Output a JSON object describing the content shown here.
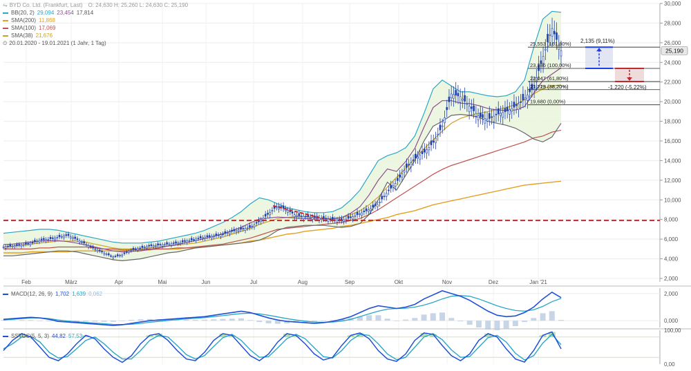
{
  "header": {
    "instrument": "BYD Co. Ltd. (Frankfurt, Last)",
    "ohlc": "O: 24,630   H: 25,260   L: 24,630   C: 25,190",
    "period": "20.01.2020 - 19.01.2021  (1 Jahr, 1 Tag)"
  },
  "indicators": [
    {
      "label": "BB(20, 2)",
      "color": "#2aa6c8",
      "values": [
        "29,094",
        "23,454",
        "17,814"
      ],
      "value_colors": [
        "#2aa6c8",
        "#8b4f8f",
        "#555555"
      ]
    },
    {
      "label": "SMA(200)",
      "color": "#e3a020",
      "values": [
        "11,868"
      ],
      "value_colors": [
        "#e3a020"
      ]
    },
    {
      "label": "SMA(100)",
      "color": "#c0504d",
      "values": [
        "17,069"
      ],
      "value_colors": [
        "#c0504d"
      ]
    },
    {
      "label": "SMA(38)",
      "color": "#c9a227",
      "values": [
        "21,676"
      ],
      "value_colors": [
        "#c9a227"
      ]
    }
  ],
  "macd_legend": {
    "label": "MACD(12, 26, 9)",
    "values": [
      "1,702",
      "1,639",
      "0,062"
    ],
    "value_colors": [
      "#1f4fd6",
      "#2aa6c8",
      "#9ab7d6"
    ]
  },
  "stoch_legend": {
    "label": "SSTOC(5, 5, 3)",
    "values": [
      "44,82",
      "57,53"
    ],
    "value_colors": [
      "#1f4fd6",
      "#2aa6c8"
    ]
  },
  "current_price_label": "25,190",
  "fib_labels": [
    {
      "price": 25.553,
      "text": "25,553 (161,80%)"
    },
    {
      "price": 23.386,
      "text": "23,386 (100,00%)"
    },
    {
      "price": 22.047,
      "text": "22,047 (61,80%)"
    },
    {
      "price": 21.223,
      "text": "21,223 (38,20%)"
    },
    {
      "price": 21.219,
      "text": "21,219 (38,20%)"
    },
    {
      "price": 19.68,
      "text": "19,680 (0,00%)"
    }
  ],
  "measure_up": "2,135 (9,11%)",
  "measure_down": "-1,220 (-5,22%)",
  "chart_data": {
    "type": "line",
    "title": "BYD Co. Ltd. (Frankfurt, Last)",
    "months": [
      "Feb",
      "März",
      "Apr",
      "Mai",
      "Jun",
      "Jul",
      "Aug",
      "Sep",
      "Okt",
      "Nov",
      "Dez",
      "Jan '21"
    ],
    "price_ticks": [
      "30,000",
      "28,000",
      "26,000",
      "24,000",
      "22,000",
      "20,000",
      "18,000",
      "16,000",
      "14,000",
      "12,000",
      "10,000",
      "8,000",
      "6,000",
      "4,000",
      "2,000"
    ],
    "ylim": [
      2,
      30
    ],
    "support_level": 7.9,
    "fib_levels": [
      25.553,
      23.386,
      22.047,
      21.223,
      19.68
    ],
    "close": [
      5.2,
      5.3,
      5.4,
      5.6,
      5.9,
      6.0,
      6.2,
      6.4,
      6.0,
      5.5,
      5.0,
      4.6,
      4.2,
      4.4,
      4.9,
      5.1,
      5.3,
      5.4,
      5.5,
      5.6,
      5.8,
      6.0,
      6.2,
      6.3,
      6.5,
      6.8,
      7.0,
      7.2,
      7.8,
      8.6,
      9.4,
      9.0,
      8.4,
      8.3,
      8.2,
      8.1,
      8.0,
      7.9,
      8.2,
      8.6,
      9.0,
      9.6,
      10.8,
      11.8,
      13.2,
      14.2,
      14.8,
      15.8,
      17.5,
      20.8,
      20.5,
      19.5,
      18.5,
      18.2,
      18.7,
      19.0,
      19.5,
      20.3,
      21.5,
      24.5,
      27.5,
      25.2
    ],
    "bb_upper": [
      6.6,
      6.7,
      6.8,
      6.9,
      7.0,
      7.0,
      6.9,
      6.7,
      6.5,
      6.3,
      6.1,
      5.9,
      5.7,
      5.6,
      5.6,
      5.6,
      5.7,
      5.8,
      6.0,
      6.2,
      6.4,
      6.6,
      6.9,
      7.3,
      7.7,
      8.2,
      8.8,
      9.6,
      10.2,
      10.0,
      9.6,
      9.2,
      9.0,
      8.8,
      8.7,
      8.7,
      8.8,
      9.2,
      10.0,
      11.0,
      12.5,
      14.0,
      14.5,
      14.8,
      15.3,
      16.5,
      18.8,
      21.3,
      22.2,
      21.6,
      21.0,
      21.0,
      20.8,
      20.6,
      20.5,
      20.6,
      21.0,
      22.2,
      25.5,
      28.4,
      29.2,
      29.1
    ],
    "bb_lower": [
      4.3,
      4.3,
      4.4,
      4.5,
      4.6,
      4.7,
      4.8,
      4.8,
      4.7,
      4.5,
      4.3,
      4.1,
      3.9,
      3.8,
      3.9,
      4.0,
      4.2,
      4.4,
      4.6,
      4.7,
      4.9,
      5.1,
      5.2,
      5.3,
      5.4,
      5.5,
      5.6,
      5.7,
      5.9,
      6.3,
      6.9,
      7.2,
      7.3,
      7.4,
      7.4,
      7.4,
      7.3,
      7.2,
      7.3,
      7.6,
      8.5,
      10.0,
      11.8,
      11.0,
      12.5,
      14.0,
      16.0,
      17.5,
      18.0,
      18.6,
      18.7,
      18.6,
      18.4,
      18.0,
      17.8,
      17.6,
      17.3,
      16.8,
      16.2,
      15.9,
      16.4,
      17.8
    ],
    "sma200": [
      4.6,
      4.6,
      4.6,
      4.7,
      4.7,
      4.7,
      4.7,
      4.7,
      4.8,
      4.8,
      4.8,
      4.8,
      4.8,
      4.8,
      4.9,
      4.9,
      4.9,
      5.0,
      5.0,
      5.0,
      5.1,
      5.1,
      5.2,
      5.3,
      5.4,
      5.5,
      5.6,
      5.8,
      5.9,
      6.1,
      6.3,
      6.5,
      6.6,
      6.8,
      6.9,
      7.0,
      7.1,
      7.3,
      7.4,
      7.6,
      7.8,
      8.0,
      8.2,
      8.5,
      8.7,
      8.9,
      9.2,
      9.5,
      9.7,
      9.9,
      10.1,
      10.3,
      10.5,
      10.7,
      10.9,
      11.1,
      11.3,
      11.5,
      11.6,
      11.7,
      11.8,
      11.9
    ],
    "sma100": [
      5.0,
      5.0,
      5.0,
      5.0,
      5.1,
      5.1,
      5.2,
      5.2,
      5.2,
      5.2,
      5.1,
      5.0,
      5.0,
      4.9,
      4.9,
      4.9,
      5.0,
      5.0,
      5.0,
      5.1,
      5.1,
      5.2,
      5.3,
      5.4,
      5.5,
      5.7,
      5.9,
      6.1,
      6.4,
      6.7,
      7.0,
      7.1,
      7.2,
      7.3,
      7.4,
      7.5,
      7.6,
      7.7,
      7.9,
      8.1,
      8.5,
      9.0,
      9.6,
      10.2,
      10.8,
      11.4,
      12.0,
      12.6,
      13.1,
      13.5,
      13.8,
      14.1,
      14.4,
      14.7,
      15.0,
      15.3,
      15.6,
      15.9,
      16.3,
      16.5,
      16.9,
      17.1
    ],
    "sma38": [
      5.2,
      5.3,
      5.4,
      5.5,
      5.6,
      5.7,
      5.8,
      5.8,
      5.8,
      5.7,
      5.5,
      5.3,
      5.1,
      5.0,
      5.0,
      5.0,
      5.1,
      5.2,
      5.3,
      5.4,
      5.5,
      5.6,
      5.8,
      6.0,
      6.2,
      6.5,
      6.8,
      7.1,
      7.5,
      7.8,
      8.1,
      8.2,
      8.3,
      8.3,
      8.2,
      8.1,
      8.1,
      8.2,
      8.5,
      8.9,
      9.5,
      10.3,
      11.3,
      12.3,
      13.2,
      14.2,
      15.2,
      16.1,
      17.0,
      17.8,
      18.3,
      18.6,
      18.8,
      19.0,
      19.2,
      19.4,
      19.7,
      20.2,
      20.8,
      21.3,
      21.6,
      21.7
    ],
    "macd": {
      "ylim": [
        -0.5,
        2.4
      ],
      "ticks": [
        "2,000",
        "0,000"
      ],
      "line": [
        0.1,
        0.15,
        0.2,
        0.25,
        0.2,
        0.1,
        -0.05,
        -0.1,
        -0.15,
        -0.2,
        -0.25,
        -0.3,
        -0.35,
        -0.3,
        -0.2,
        -0.1,
        0.0,
        0.05,
        0.1,
        0.15,
        0.2,
        0.25,
        0.3,
        0.4,
        0.5,
        0.6,
        0.7,
        0.6,
        0.4,
        0.2,
        0.05,
        -0.05,
        -0.1,
        -0.15,
        -0.2,
        -0.15,
        -0.05,
        0.1,
        0.3,
        0.6,
        0.9,
        1.1,
        1.0,
        0.9,
        1.0,
        1.2,
        1.6,
        1.9,
        2.2,
        2.0,
        1.8,
        1.5,
        1.1,
        0.7,
        0.4,
        0.3,
        0.35,
        0.6,
        1.0,
        1.6,
        2.1,
        1.7
      ],
      "signal": [
        0.05,
        0.1,
        0.15,
        0.2,
        0.2,
        0.15,
        0.05,
        -0.02,
        -0.08,
        -0.13,
        -0.18,
        -0.22,
        -0.27,
        -0.28,
        -0.26,
        -0.2,
        -0.12,
        -0.05,
        0.02,
        0.08,
        0.13,
        0.18,
        0.23,
        0.3,
        0.37,
        0.45,
        0.53,
        0.55,
        0.5,
        0.4,
        0.28,
        0.15,
        0.05,
        -0.03,
        -0.1,
        -0.12,
        -0.1,
        -0.03,
        0.1,
        0.3,
        0.5,
        0.7,
        0.85,
        0.9,
        0.92,
        1.0,
        1.15,
        1.35,
        1.6,
        1.8,
        1.85,
        1.8,
        1.6,
        1.35,
        1.1,
        0.9,
        0.75,
        0.7,
        0.8,
        1.05,
        1.4,
        1.64
      ]
    },
    "stochastic": {
      "ylim": [
        0,
        100
      ],
      "ticks": [
        "100,00",
        "0,00"
      ],
      "k": [
        40,
        70,
        90,
        80,
        50,
        20,
        10,
        30,
        60,
        85,
        75,
        45,
        20,
        5,
        25,
        60,
        85,
        90,
        70,
        40,
        15,
        10,
        35,
        70,
        90,
        85,
        55,
        25,
        10,
        30,
        65,
        90,
        85,
        60,
        30,
        12,
        20,
        55,
        85,
        92,
        75,
        40,
        15,
        8,
        30,
        70,
        92,
        88,
        55,
        25,
        10,
        30,
        70,
        90,
        80,
        45,
        15,
        6,
        40,
        85,
        95,
        45
      ],
      "d": [
        45,
        60,
        80,
        82,
        65,
        35,
        18,
        22,
        45,
        70,
        80,
        60,
        35,
        15,
        15,
        40,
        70,
        85,
        80,
        55,
        28,
        15,
        25,
        52,
        78,
        88,
        70,
        42,
        20,
        22,
        48,
        75,
        88,
        75,
        48,
        22,
        18,
        40,
        70,
        88,
        85,
        60,
        30,
        13,
        20,
        50,
        80,
        90,
        72,
        42,
        20,
        22,
        50,
        78,
        85,
        65,
        32,
        12,
        25,
        62,
        88,
        57
      ]
    }
  }
}
